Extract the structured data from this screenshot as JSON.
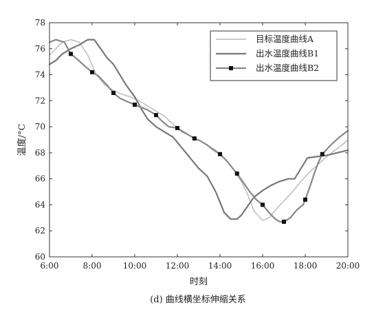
{
  "caption": "(d) 曲线横坐标伸缩关系",
  "chart_data": {
    "type": "line",
    "title": "",
    "xlabel": "时刻",
    "ylabel": "温度/°C",
    "xlim": [
      6,
      20
    ],
    "ylim": [
      60,
      78
    ],
    "x_ticks": [
      6,
      8,
      10,
      12,
      14,
      16,
      18,
      20
    ],
    "x_tick_labels": [
      "6:00",
      "8:00",
      "10:00",
      "12:00",
      "14:00",
      "16:00",
      "18:00",
      "20:00"
    ],
    "y_ticks": [
      60,
      62,
      64,
      66,
      68,
      70,
      72,
      74,
      76,
      78
    ],
    "y_tick_labels": [
      "60",
      "62",
      "64",
      "66",
      "68",
      "70",
      "72",
      "74",
      "76",
      "78"
    ],
    "grid": false,
    "legend_position": "top-right",
    "series": [
      {
        "name": "目标温度曲线A",
        "color": "#b8b8b8",
        "marker": "none",
        "x": [
          6.0,
          6.3,
          6.6,
          7.0,
          7.4,
          7.8,
          8.2,
          8.6,
          9.0,
          9.4,
          9.8,
          10.2,
          10.6,
          11.0,
          11.4,
          11.8,
          12.2,
          12.6,
          13.0,
          13.4,
          13.8,
          14.2,
          14.6,
          15.0,
          15.3,
          15.6,
          16.0,
          16.3,
          16.6,
          17.0,
          17.4,
          17.8,
          18.2,
          18.6,
          19.0,
          19.4,
          19.8,
          20.0
        ],
        "y": [
          75.5,
          76.0,
          76.5,
          76.7,
          76.5,
          75.5,
          74.0,
          73.2,
          72.8,
          72.5,
          72.3,
          72.0,
          71.6,
          71.2,
          70.8,
          70.2,
          69.6,
          69.3,
          69.0,
          68.6,
          68.2,
          67.6,
          66.8,
          65.8,
          64.8,
          63.5,
          62.8,
          63.0,
          63.6,
          64.3,
          65.0,
          65.8,
          66.5,
          67.1,
          67.7,
          68.2,
          68.7,
          69.0
        ]
      },
      {
        "name": "出水温度曲线B1",
        "color": "#777777",
        "marker": "none",
        "x": [
          6.0,
          6.3,
          6.6,
          7.0,
          7.4,
          7.8,
          8.1,
          8.4,
          8.7,
          9.0,
          9.3,
          9.6,
          10.0,
          10.3,
          10.6,
          11.0,
          11.4,
          11.8,
          12.2,
          12.6,
          13.0,
          13.4,
          13.8,
          14.0,
          14.2,
          14.5,
          14.8,
          15.0,
          15.3,
          15.6,
          16.0,
          16.4,
          16.8,
          17.2,
          17.5,
          17.8,
          18.1,
          18.5,
          19.0,
          19.5,
          20.0
        ],
        "y": [
          74.8,
          75.1,
          75.6,
          76.0,
          76.3,
          76.7,
          76.7,
          76.0,
          75.3,
          74.8,
          74.0,
          73.2,
          72.3,
          71.4,
          70.6,
          70.0,
          69.6,
          69.2,
          68.4,
          67.6,
          66.8,
          66.2,
          65.0,
          64.2,
          63.4,
          62.9,
          62.9,
          63.2,
          63.9,
          64.6,
          65.1,
          65.5,
          65.8,
          66.0,
          66.0,
          66.8,
          67.6,
          67.7,
          67.8,
          68.0,
          68.2
        ]
      },
      {
        "name": "出水温度曲线B2",
        "color": "#888888",
        "marker": "square",
        "x": [
          6.0,
          6.3,
          6.7,
          7.0,
          7.3,
          7.7,
          8.0,
          8.3,
          8.7,
          9.0,
          9.3,
          9.7,
          10.0,
          10.3,
          10.6,
          11.0,
          11.3,
          11.6,
          12.0,
          12.3,
          12.6,
          12.8,
          13.1,
          13.4,
          13.7,
          14.0,
          14.3,
          14.6,
          14.8,
          15.1,
          15.4,
          15.7,
          16.0,
          16.3,
          16.6,
          16.8,
          17.0,
          17.3,
          17.6,
          17.9,
          18.0,
          18.2,
          18.4,
          18.6,
          18.8,
          19.2,
          19.6,
          20.0
        ],
        "y": [
          76.5,
          76.7,
          76.5,
          75.6,
          75.2,
          74.6,
          74.2,
          73.9,
          73.2,
          72.6,
          72.2,
          71.9,
          71.7,
          71.5,
          71.3,
          70.9,
          70.4,
          70.0,
          69.9,
          69.6,
          69.3,
          69.1,
          68.9,
          68.6,
          68.2,
          67.9,
          67.4,
          66.8,
          66.4,
          65.7,
          65.0,
          64.4,
          64.0,
          63.4,
          62.9,
          62.7,
          62.7,
          63.0,
          63.6,
          64.0,
          64.4,
          65.3,
          66.3,
          67.2,
          67.9,
          68.6,
          69.2,
          69.7
        ],
        "marker_x": [
          7.0,
          8.0,
          9.0,
          10.0,
          11.0,
          12.0,
          12.8,
          14.0,
          14.8,
          16.0,
          17.0,
          18.0,
          18.8
        ],
        "marker_y": [
          75.6,
          74.2,
          72.6,
          71.7,
          70.9,
          69.9,
          69.1,
          67.9,
          66.4,
          64.0,
          62.7,
          64.4,
          67.9
        ]
      }
    ]
  }
}
